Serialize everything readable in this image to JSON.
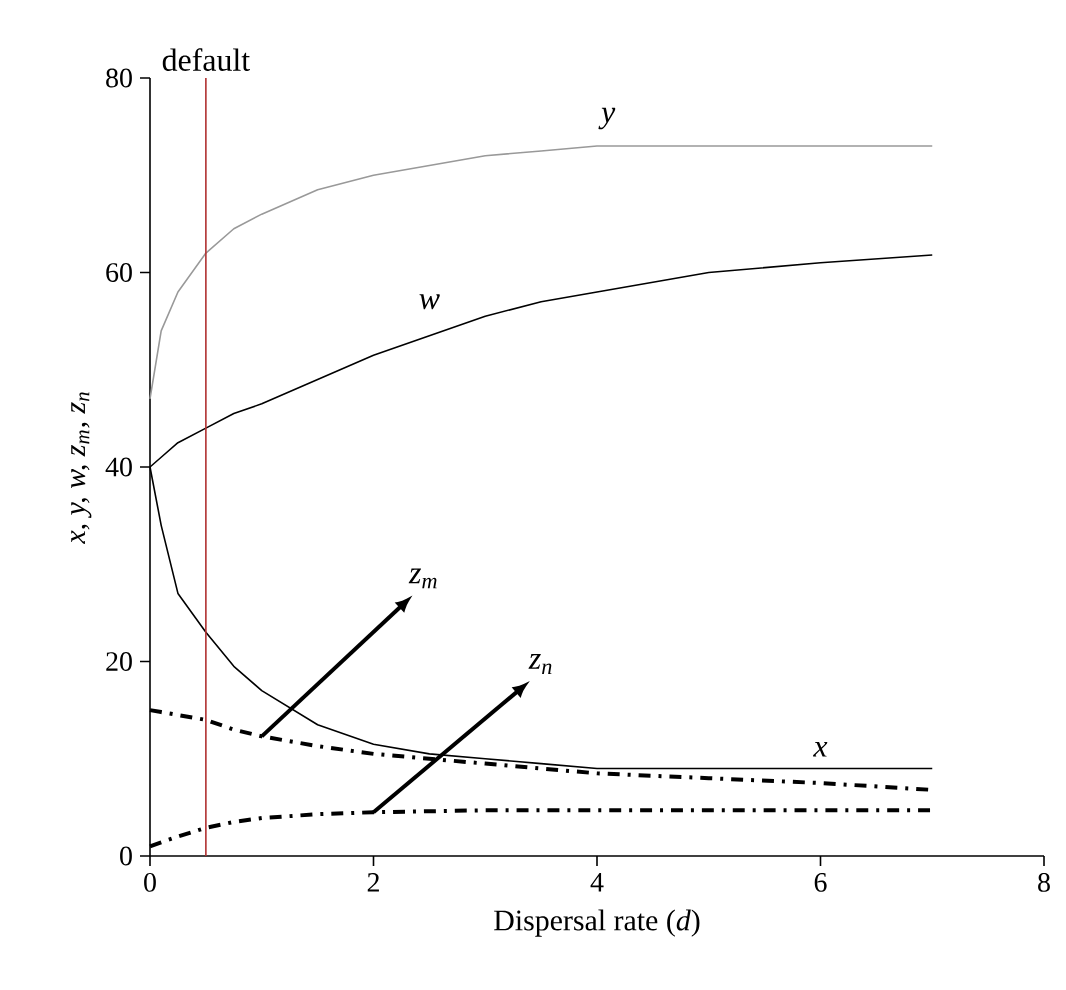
{
  "chart_data": {
    "type": "line",
    "xlabel": "Dispersal rate (*d*)",
    "ylabel": "x, y, w, z$_{m}$, z$_{n}$",
    "x": [
      0,
      0.1,
      0.25,
      0.5,
      0.75,
      1,
      1.5,
      2,
      2.5,
      3,
      3.5,
      4,
      5,
      6,
      7
    ],
    "series": [
      {
        "name": "y",
        "color": "#999999",
        "line_style": "solid",
        "values": [
          47,
          54,
          58,
          62,
          64.5,
          66,
          68.5,
          70,
          71,
          72,
          72.5,
          73,
          73,
          73,
          73
        ]
      },
      {
        "name": "w",
        "color": "#000000",
        "line_style": "solid",
        "values": [
          40,
          41,
          42.5,
          44,
          45.5,
          46.5,
          49,
          51.5,
          53.5,
          55.5,
          57,
          58,
          60,
          61,
          61.8
        ]
      },
      {
        "name": "x",
        "color": "#000000",
        "line_style": "solid",
        "values": [
          40,
          34,
          27,
          23,
          19.5,
          17,
          13.5,
          11.5,
          10.5,
          10,
          9.5,
          9,
          9,
          9,
          9
        ]
      },
      {
        "name": "z$_{m}$",
        "color": "#000000",
        "line_style": "dashed",
        "values": [
          15,
          14.8,
          14.5,
          14,
          13,
          12.3,
          11.3,
          10.5,
          10,
          9.5,
          9,
          8.5,
          8,
          7.5,
          6.8
        ]
      },
      {
        "name": "z$_{n}$",
        "color": "#000000",
        "line_style": "dashed",
        "values": [
          1,
          1.4,
          2,
          2.9,
          3.5,
          3.9,
          4.3,
          4.5,
          4.6,
          4.7,
          4.7,
          4.7,
          4.7,
          4.7,
          4.7
        ]
      }
    ],
    "xlim": [
      0,
      8
    ],
    "ylim": [
      0,
      80
    ],
    "xticks": [
      0,
      2,
      4,
      6,
      8
    ],
    "yticks": [
      0,
      20,
      40,
      60,
      80
    ],
    "ref_lines": [
      {
        "axis": "x",
        "value": 0.5,
        "label": "default",
        "color": "#b03030"
      }
    ],
    "grid": false
  }
}
